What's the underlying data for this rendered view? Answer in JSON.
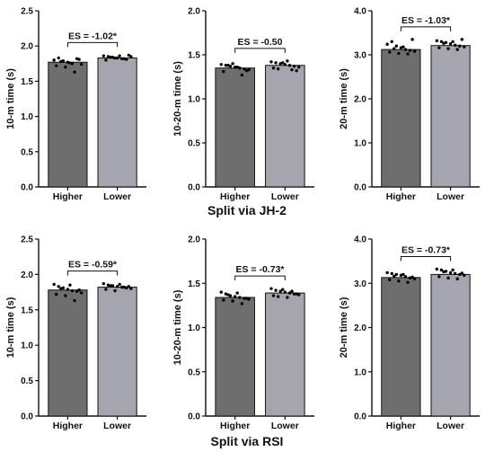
{
  "sections": [
    "Split via JH-2",
    "Split via RSI"
  ],
  "chart_data": [
    {
      "type": "bar",
      "panel": "row1-col1",
      "categories": [
        "Higher",
        "Lower"
      ],
      "values": [
        1.77,
        1.83
      ],
      "ylabel": "10-m time (s)",
      "ylim": [
        0,
        2.5
      ],
      "yticks": [
        "0.0",
        "0.5",
        "1.0",
        "1.5",
        "2.0",
        "2.5"
      ],
      "annotation": "ES = -1.02*",
      "points": [
        [
          1.8,
          1.83,
          1.79,
          1.77,
          1.75,
          1.82,
          1.74,
          1.72,
          1.78,
          1.7,
          1.76,
          1.63,
          1.81
        ],
        [
          1.86,
          1.85,
          1.84,
          1.83,
          1.82,
          1.81,
          1.85,
          1.8,
          1.84,
          1.83,
          1.86,
          1.82,
          1.87
        ]
      ],
      "colors": [
        "#6e6e6e",
        "#a5a5ad"
      ]
    },
    {
      "type": "bar",
      "panel": "row1-col2",
      "categories": [
        "Higher",
        "Lower"
      ],
      "values": [
        1.35,
        1.38
      ],
      "ylabel": "10-20-m time (s)",
      "ylim": [
        0,
        2.0
      ],
      "yticks": [
        "0.0",
        "0.5",
        "1.0",
        "1.5",
        "2.0"
      ],
      "annotation": "ES = -0.50",
      "points": [
        [
          1.39,
          1.38,
          1.37,
          1.36,
          1.35,
          1.34,
          1.33,
          1.31,
          1.38,
          1.4,
          1.36,
          1.27,
          1.32
        ],
        [
          1.42,
          1.41,
          1.4,
          1.39,
          1.38,
          1.37,
          1.36,
          1.35,
          1.34,
          1.41,
          1.43,
          1.33,
          1.32
        ]
      ],
      "colors": [
        "#6e6e6e",
        "#a5a5ad"
      ]
    },
    {
      "type": "bar",
      "panel": "row1-col3",
      "categories": [
        "Higher",
        "Lower"
      ],
      "values": [
        3.12,
        3.21
      ],
      "ylabel": "20-m time (s)",
      "ylim": [
        0,
        4.0
      ],
      "yticks": [
        "0.0",
        "1.0",
        "2.0",
        "3.0",
        "4.0"
      ],
      "annotation": "ES = -1.03*",
      "points": [
        [
          3.24,
          3.3,
          3.2,
          3.16,
          3.12,
          3.1,
          3.08,
          3.06,
          3.14,
          3.03,
          3.18,
          3.02,
          3.35
        ],
        [
          3.32,
          3.3,
          3.28,
          3.25,
          3.22,
          3.2,
          3.18,
          3.16,
          3.26,
          3.14,
          3.3,
          3.12,
          3.35
        ]
      ],
      "colors": [
        "#6e6e6e",
        "#a5a5ad"
      ]
    },
    {
      "type": "bar",
      "panel": "row2-col1",
      "categories": [
        "Higher",
        "Lower"
      ],
      "values": [
        1.78,
        1.82
      ],
      "ylabel": "10-m time (s)",
      "ylim": [
        0,
        2.5
      ],
      "yticks": [
        "0.0",
        "0.5",
        "1.0",
        "1.5",
        "2.0",
        "2.5"
      ],
      "annotation": "ES = -0.59*",
      "points": [
        [
          1.86,
          1.83,
          1.81,
          1.79,
          1.77,
          1.76,
          1.74,
          1.72,
          1.8,
          1.7,
          1.85,
          1.63,
          1.78
        ],
        [
          1.87,
          1.85,
          1.84,
          1.83,
          1.82,
          1.81,
          1.8,
          1.79,
          1.84,
          1.77,
          1.86,
          1.82,
          1.83
        ]
      ],
      "colors": [
        "#6e6e6e",
        "#a5a5ad"
      ]
    },
    {
      "type": "bar",
      "panel": "row2-col2",
      "categories": [
        "Higher",
        "Lower"
      ],
      "values": [
        1.34,
        1.39
      ],
      "ylabel": "10-20-m time (s)",
      "ylim": [
        0,
        2.0
      ],
      "yticks": [
        "0.0",
        "0.5",
        "1.0",
        "1.5",
        "2.0"
      ],
      "annotation": "ES = -0.73*",
      "points": [
        [
          1.4,
          1.38,
          1.36,
          1.35,
          1.34,
          1.33,
          1.32,
          1.31,
          1.37,
          1.3,
          1.39,
          1.27,
          1.33
        ],
        [
          1.44,
          1.42,
          1.41,
          1.4,
          1.39,
          1.38,
          1.37,
          1.36,
          1.35,
          1.43,
          1.34,
          1.41,
          1.38
        ]
      ],
      "colors": [
        "#6e6e6e",
        "#a5a5ad"
      ]
    },
    {
      "type": "bar",
      "panel": "row2-col3",
      "categories": [
        "Higher",
        "Lower"
      ],
      "values": [
        3.13,
        3.2
      ],
      "ylabel": "20-m time (s)",
      "ylim": [
        0,
        4.0
      ],
      "yticks": [
        "0.0",
        "1.0",
        "2.0",
        "3.0",
        "4.0"
      ],
      "annotation": "ES = -0.73*",
      "points": [
        [
          3.24,
          3.22,
          3.2,
          3.18,
          3.15,
          3.12,
          3.1,
          3.08,
          3.16,
          3.05,
          3.2,
          3.02,
          3.14
        ],
        [
          3.32,
          3.3,
          3.27,
          3.24,
          3.22,
          3.2,
          3.18,
          3.15,
          3.26,
          3.12,
          3.3,
          3.1,
          3.23
        ]
      ],
      "colors": [
        "#6e6e6e",
        "#a5a5ad"
      ]
    }
  ]
}
